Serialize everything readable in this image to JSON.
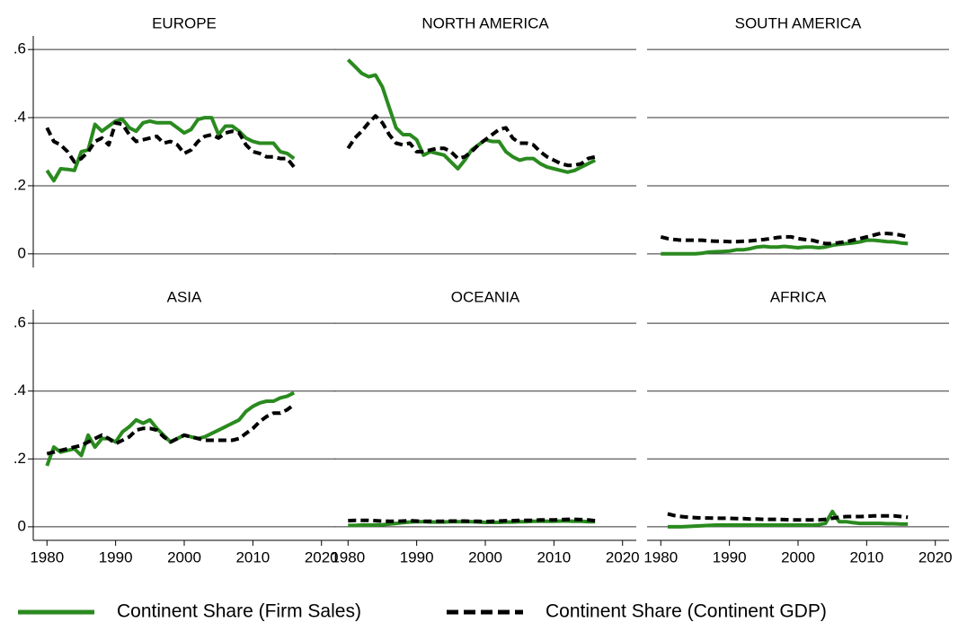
{
  "chart_data": {
    "type": "line",
    "x": [
      1980,
      1981,
      1982,
      1983,
      1984,
      1985,
      1986,
      1987,
      1988,
      1989,
      1990,
      1991,
      1992,
      1993,
      1994,
      1995,
      1996,
      1997,
      1998,
      1999,
      2000,
      2001,
      2002,
      2003,
      2004,
      2005,
      2006,
      2007,
      2008,
      2009,
      2010,
      2011,
      2012,
      2013,
      2014,
      2015,
      2016
    ],
    "xlim": [
      1978,
      2022
    ],
    "xticks": [
      1980,
      1990,
      2000,
      2010,
      2020
    ],
    "ylim": [
      -0.04,
      0.64
    ],
    "yticks": [
      0,
      {
        "value": 0.2,
        "label": ".2"
      },
      {
        "value": 0.4,
        "label": ".4"
      },
      {
        "value": 0.6,
        "label": ".6"
      }
    ],
    "grid": true,
    "series": [
      {
        "name": "Continent Share (Firm Sales)",
        "color": "#2a8a1f",
        "line_style": "solid"
      },
      {
        "name": "Continent Share (Continent GDP)",
        "color": "#000000",
        "line_style": "dashed"
      }
    ],
    "panels": [
      {
        "title": "EUROPE",
        "values": [
          [
            0.245,
            0.215,
            0.25,
            0.248,
            0.245,
            0.3,
            0.305,
            0.38,
            0.36,
            0.375,
            0.39,
            0.395,
            0.37,
            0.36,
            0.385,
            0.39,
            0.385,
            0.385,
            0.385,
            0.37,
            0.355,
            0.365,
            0.395,
            0.4,
            0.4,
            0.35,
            0.375,
            0.375,
            0.36,
            0.34,
            0.33,
            0.325,
            0.325,
            0.325,
            0.3,
            0.295,
            0.28
          ],
          [
            0.37,
            0.33,
            0.32,
            0.3,
            0.27,
            0.28,
            0.3,
            0.33,
            0.34,
            0.32,
            0.385,
            0.38,
            0.35,
            0.33,
            0.335,
            0.34,
            0.345,
            0.325,
            0.33,
            0.32,
            0.295,
            0.305,
            0.33,
            0.345,
            0.35,
            0.34,
            0.355,
            0.36,
            0.355,
            0.32,
            0.3,
            0.295,
            0.285,
            0.285,
            0.28,
            0.28,
            0.255
          ]
        ]
      },
      {
        "title": "NORTH AMERICA",
        "values": [
          [
            0.57,
            0.55,
            0.53,
            0.52,
            0.525,
            0.49,
            0.43,
            0.37,
            0.35,
            0.35,
            0.335,
            0.29,
            0.3,
            0.295,
            0.29,
            0.27,
            0.25,
            0.275,
            0.305,
            0.32,
            0.335,
            0.33,
            0.33,
            0.3,
            0.285,
            0.275,
            0.28,
            0.28,
            0.265,
            0.255,
            0.25,
            0.245,
            0.24,
            0.245,
            0.255,
            0.265,
            0.275
          ],
          [
            0.31,
            0.34,
            0.36,
            0.385,
            0.405,
            0.385,
            0.35,
            0.325,
            0.32,
            0.325,
            0.3,
            0.3,
            0.305,
            0.31,
            0.31,
            0.3,
            0.28,
            0.285,
            0.3,
            0.32,
            0.335,
            0.35,
            0.365,
            0.37,
            0.34,
            0.325,
            0.325,
            0.32,
            0.3,
            0.285,
            0.275,
            0.265,
            0.26,
            0.26,
            0.265,
            0.28,
            0.285
          ]
        ]
      },
      {
        "title": "SOUTH AMERICA",
        "values": [
          [
            0,
            0,
            0,
            0,
            0,
            0,
            0.002,
            0.005,
            0.006,
            0.007,
            0.008,
            0.012,
            0.012,
            0.015,
            0.02,
            0.022,
            0.02,
            0.02,
            0.022,
            0.02,
            0.018,
            0.02,
            0.02,
            0.018,
            0.02,
            0.025,
            0.028,
            0.03,
            0.032,
            0.035,
            0.04,
            0.04,
            0.038,
            0.036,
            0.035,
            0.032,
            0.03
          ],
          [
            0.05,
            0.045,
            0.042,
            0.04,
            0.04,
            0.04,
            0.04,
            0.038,
            0.037,
            0.037,
            0.036,
            0.036,
            0.037,
            0.038,
            0.04,
            0.042,
            0.045,
            0.048,
            0.05,
            0.05,
            0.045,
            0.042,
            0.04,
            0.035,
            0.03,
            0.03,
            0.033,
            0.035,
            0.04,
            0.045,
            0.05,
            0.055,
            0.06,
            0.06,
            0.058,
            0.055,
            0.05
          ]
        ]
      },
      {
        "title": "ASIA",
        "values": [
          [
            0.18,
            0.235,
            0.22,
            0.225,
            0.23,
            0.21,
            0.27,
            0.235,
            0.26,
            0.26,
            0.25,
            0.28,
            0.295,
            0.315,
            0.305,
            0.315,
            0.29,
            0.27,
            0.25,
            0.26,
            0.27,
            0.265,
            0.26,
            0.265,
            0.275,
            0.285,
            0.295,
            0.305,
            0.315,
            0.34,
            0.355,
            0.365,
            0.37,
            0.37,
            0.38,
            0.385,
            0.395
          ],
          [
            0.215,
            0.22,
            0.225,
            0.23,
            0.235,
            0.24,
            0.25,
            0.26,
            0.27,
            0.26,
            0.245,
            0.255,
            0.265,
            0.285,
            0.29,
            0.29,
            0.285,
            0.265,
            0.25,
            0.26,
            0.27,
            0.265,
            0.26,
            0.255,
            0.255,
            0.255,
            0.255,
            0.255,
            0.26,
            0.275,
            0.29,
            0.31,
            0.325,
            0.335,
            0.335,
            0.345,
            0.36
          ]
        ]
      },
      {
        "title": "OCEANIA",
        "values": [
          [
            0.004,
            0.004,
            0.005,
            0.005,
            0.005,
            0.006,
            0.008,
            0.01,
            0.012,
            0.014,
            0.015,
            0.015,
            0.014,
            0.014,
            0.014,
            0.015,
            0.015,
            0.015,
            0.015,
            0.014,
            0.013,
            0.013,
            0.013,
            0.014,
            0.014,
            0.015,
            0.015,
            0.016,
            0.016,
            0.016,
            0.016,
            0.017,
            0.017,
            0.016,
            0.016,
            0.015,
            0.015
          ],
          [
            0.018,
            0.019,
            0.019,
            0.019,
            0.018,
            0.017,
            0.016,
            0.016,
            0.017,
            0.018,
            0.017,
            0.016,
            0.016,
            0.016,
            0.016,
            0.017,
            0.017,
            0.017,
            0.016,
            0.016,
            0.015,
            0.016,
            0.017,
            0.018,
            0.018,
            0.019,
            0.019,
            0.019,
            0.02,
            0.02,
            0.02,
            0.021,
            0.022,
            0.022,
            0.021,
            0.02,
            0.018
          ]
        ]
      },
      {
        "title": "AFRICA",
        "values": [
          [
            null,
            0,
            0,
            0,
            0.001,
            0.002,
            0.003,
            0.004,
            0.005,
            0.005,
            0.005,
            0.005,
            0.005,
            0.005,
            0.005,
            0.005,
            0.005,
            0.005,
            0.005,
            0.005,
            0.005,
            0.005,
            0.005,
            0.006,
            0.01,
            0.045,
            0.015,
            0.015,
            0.012,
            0.01,
            0.01,
            0.01,
            0.01,
            0.009,
            0.009,
            0.008,
            0.008
          ],
          [
            null,
            0.038,
            0.033,
            0.03,
            0.028,
            0.027,
            0.026,
            0.026,
            0.025,
            0.025,
            0.025,
            0.024,
            0.024,
            0.023,
            0.023,
            0.022,
            0.022,
            0.022,
            0.021,
            0.02,
            0.02,
            0.02,
            0.02,
            0.02,
            0.022,
            0.025,
            0.028,
            0.03,
            0.03,
            0.03,
            0.031,
            0.032,
            0.032,
            0.032,
            0.032,
            0.03,
            0.028
          ]
        ]
      }
    ]
  }
}
